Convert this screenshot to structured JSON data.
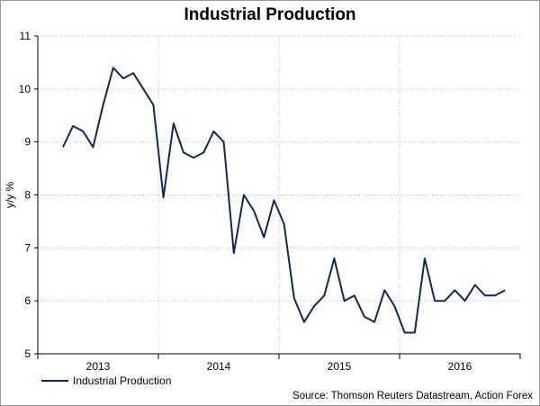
{
  "colors": {
    "series": "#0a2a5a",
    "grid": "#bdbdbd",
    "axis": "#000000"
  },
  "source_text": "Source: Thomson Reuters Datastream, Action Forex",
  "chart_data": {
    "type": "line",
    "title": "Industrial Production",
    "ylabel": "y/y %",
    "xlabel": "",
    "ylim": [
      5,
      11
    ],
    "yticks": [
      5,
      6,
      7,
      8,
      9,
      10,
      11
    ],
    "xlim": [
      0,
      48
    ],
    "year_labels": [
      {
        "label": "2013",
        "pos": 6
      },
      {
        "label": "2014",
        "pos": 18
      },
      {
        "label": "2015",
        "pos": 30
      },
      {
        "label": "2016",
        "pos": 42
      }
    ],
    "year_boundaries": [
      0,
      12,
      24,
      36,
      48
    ],
    "series": [
      {
        "name": "Industrial Production",
        "x": [
          2.5,
          3.5,
          4.5,
          5.5,
          6.5,
          7.5,
          8.5,
          9.5,
          10.5,
          11.5,
          12.5,
          13.5,
          14.5,
          15.5,
          16.5,
          17.5,
          18.5,
          19.5,
          20.5,
          21.5,
          22.5,
          23.5,
          24.5,
          25.5,
          26.5,
          27.5,
          28.5,
          29.5,
          30.5,
          31.5,
          32.5,
          33.5,
          34.5,
          35.5,
          36.5,
          37.5,
          38.5,
          39.5,
          40.5,
          41.5,
          42.5,
          43.5,
          44.5,
          45.5,
          46.5
        ],
        "values": [
          8.9,
          9.3,
          9.2,
          8.9,
          9.7,
          10.4,
          10.2,
          10.3,
          10.0,
          9.7,
          7.95,
          9.35,
          8.8,
          8.7,
          8.8,
          9.2,
          9.0,
          6.9,
          8.0,
          7.7,
          7.2,
          7.9,
          7.45,
          6.05,
          5.6,
          5.9,
          6.1,
          6.8,
          6.0,
          6.1,
          5.7,
          5.6,
          6.2,
          5.9,
          5.4,
          5.4,
          6.8,
          6.0,
          6.0,
          6.2,
          6.0,
          6.3,
          6.1,
          6.1,
          6.2
        ]
      }
    ],
    "legend_position": "bottom-left"
  }
}
